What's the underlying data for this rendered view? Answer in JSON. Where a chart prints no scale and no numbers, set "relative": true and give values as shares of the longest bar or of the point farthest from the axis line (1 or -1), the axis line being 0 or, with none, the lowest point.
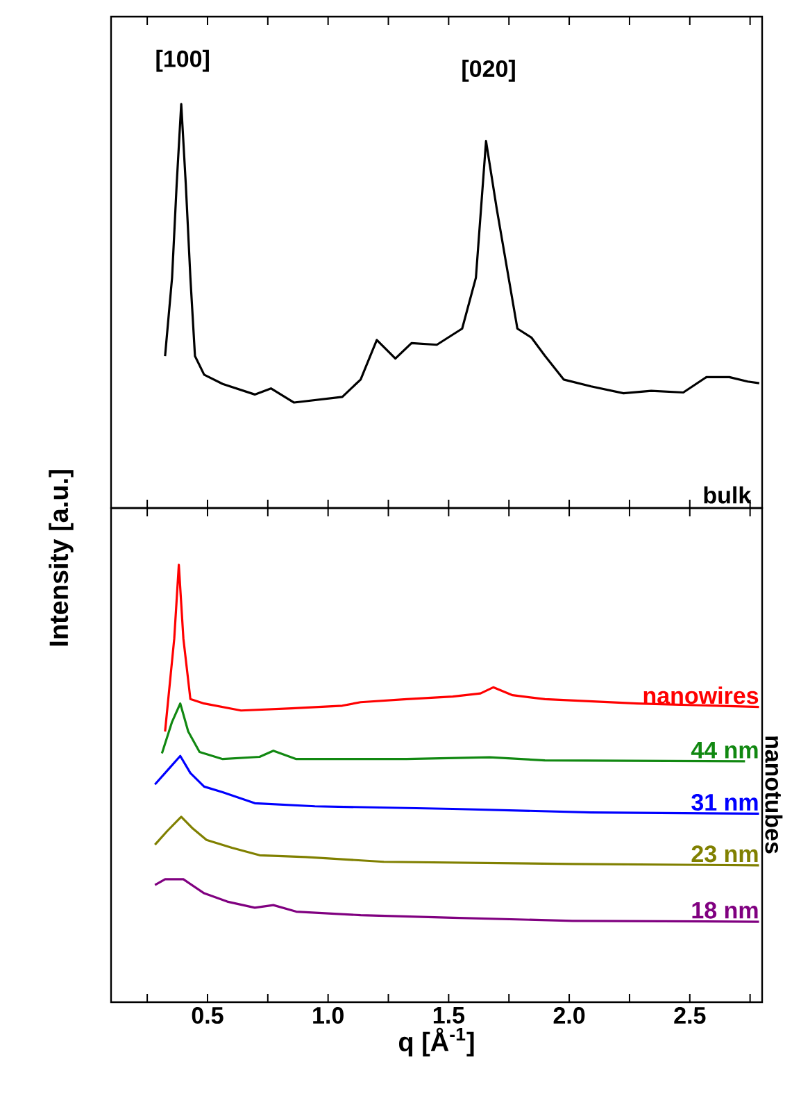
{
  "chart_data": [
    {
      "type": "line",
      "relative": true,
      "ylabel": "Intensity [a.u.]",
      "xlim": [
        0.1,
        2.8
      ],
      "xticks": [
        {
          "value": 0.25,
          "label": null
        },
        0.5,
        {
          "value": 0.75,
          "label": null
        },
        1,
        {
          "value": 1.25,
          "label": null
        },
        1.5,
        {
          "value": 1.75,
          "label": null
        },
        2,
        {
          "value": 2.25,
          "label": null
        },
        2.5,
        {
          "value": 2.75,
          "label": null
        }
      ],
      "tick_labels": false,
      "series": [
        {
          "name": "bulk",
          "color": "#000000",
          "x": [
            0.324,
            0.353,
            0.372,
            0.391,
            0.41,
            0.429,
            0.448,
            0.486,
            0.563,
            0.696,
            0.763,
            0.859,
            1.059,
            1.135,
            1.202,
            1.279,
            1.346,
            1.451,
            1.556,
            1.613,
            1.655,
            1.699,
            1.785,
            1.843,
            1.9,
            1.977,
            2.091,
            2.225,
            2.34,
            2.473,
            2.569,
            2.664,
            2.74,
            2.788
          ],
          "values": [
            0.376,
            0.57,
            0.8,
            1.0,
            0.8,
            0.57,
            0.376,
            0.33,
            0.307,
            0.281,
            0.296,
            0.261,
            0.275,
            0.318,
            0.416,
            0.37,
            0.408,
            0.404,
            0.444,
            0.57,
            0.908,
            0.742,
            0.444,
            0.422,
            0.376,
            0.318,
            0.301,
            0.284,
            0.29,
            0.286,
            0.324,
            0.324,
            0.313,
            0.309
          ]
        }
      ],
      "annotations": [
        "[100]",
        "[020]"
      ]
    },
    {
      "type": "line",
      "relative": true,
      "xlabel": "q [Å$^{-1}$]",
      "xlim": [
        0.1,
        2.8
      ],
      "xticks": [
        {
          "value": 0.25,
          "label": null
        },
        0.5,
        {
          "value": 0.75,
          "label": null
        },
        {
          "value": 1.0,
          "label": "1.0"
        },
        {
          "value": 1.25,
          "label": null
        },
        1.5,
        {
          "value": 1.75,
          "label": null
        },
        {
          "value": 2.0,
          "label": "2.0"
        },
        {
          "value": 2.25,
          "label": null
        },
        2.5,
        {
          "value": 2.75,
          "label": null
        }
      ],
      "tick_labels": "x",
      "series": [
        {
          "name": "nanowires",
          "color": "#ff0000",
          "x": [
            0.324,
            0.362,
            0.381,
            0.4,
            0.429,
            0.486,
            0.639,
            0.849,
            1.059,
            1.135,
            1.326,
            1.517,
            1.632,
            1.685,
            1.765,
            1.899,
            2.281,
            2.787
          ],
          "values": [
            0.619,
            0.831,
            1.0,
            0.831,
            0.693,
            0.683,
            0.667,
            0.672,
            0.678,
            0.686,
            0.693,
            0.699,
            0.706,
            0.72,
            0.702,
            0.693,
            0.683,
            0.675
          ]
        },
        {
          "name": "44 nm",
          "color": "#118811",
          "x": [
            0.311,
            0.353,
            0.387,
            0.42,
            0.467,
            0.563,
            0.716,
            0.773,
            0.868,
            1.326,
            1.67,
            1.899,
            2.729
          ],
          "values": [
            0.569,
            0.641,
            0.683,
            0.619,
            0.572,
            0.556,
            0.561,
            0.575,
            0.556,
            0.556,
            0.56,
            0.553,
            0.551
          ]
        },
        {
          "name": "31 nm",
          "color": "#0000ff",
          "x": [
            0.282,
            0.345,
            0.387,
            0.429,
            0.486,
            0.563,
            0.696,
            0.945,
            1.517,
            2.09,
            2.787
          ],
          "values": [
            0.498,
            0.537,
            0.563,
            0.524,
            0.493,
            0.48,
            0.455,
            0.448,
            0.442,
            0.434,
            0.431
          ]
        },
        {
          "name": "23 nm",
          "color": "#808000",
          "x": [
            0.282,
            0.334,
            0.391,
            0.439,
            0.496,
            0.601,
            0.716,
            0.907,
            1.231,
            2.014,
            2.787
          ],
          "values": [
            0.36,
            0.392,
            0.424,
            0.397,
            0.371,
            0.353,
            0.336,
            0.332,
            0.321,
            0.316,
            0.313
          ]
        },
        {
          "name": "18 nm",
          "color": "#800080",
          "x": [
            0.282,
            0.324,
            0.4,
            0.486,
            0.582,
            0.696,
            0.773,
            0.868,
            1.135,
            1.517,
            2.014,
            2.787
          ],
          "values": [
            0.268,
            0.281,
            0.281,
            0.249,
            0.23,
            0.216,
            0.222,
            0.207,
            0.199,
            0.193,
            0.186,
            0.184
          ]
        }
      ],
      "annotations": [
        "nanotubes"
      ]
    }
  ]
}
